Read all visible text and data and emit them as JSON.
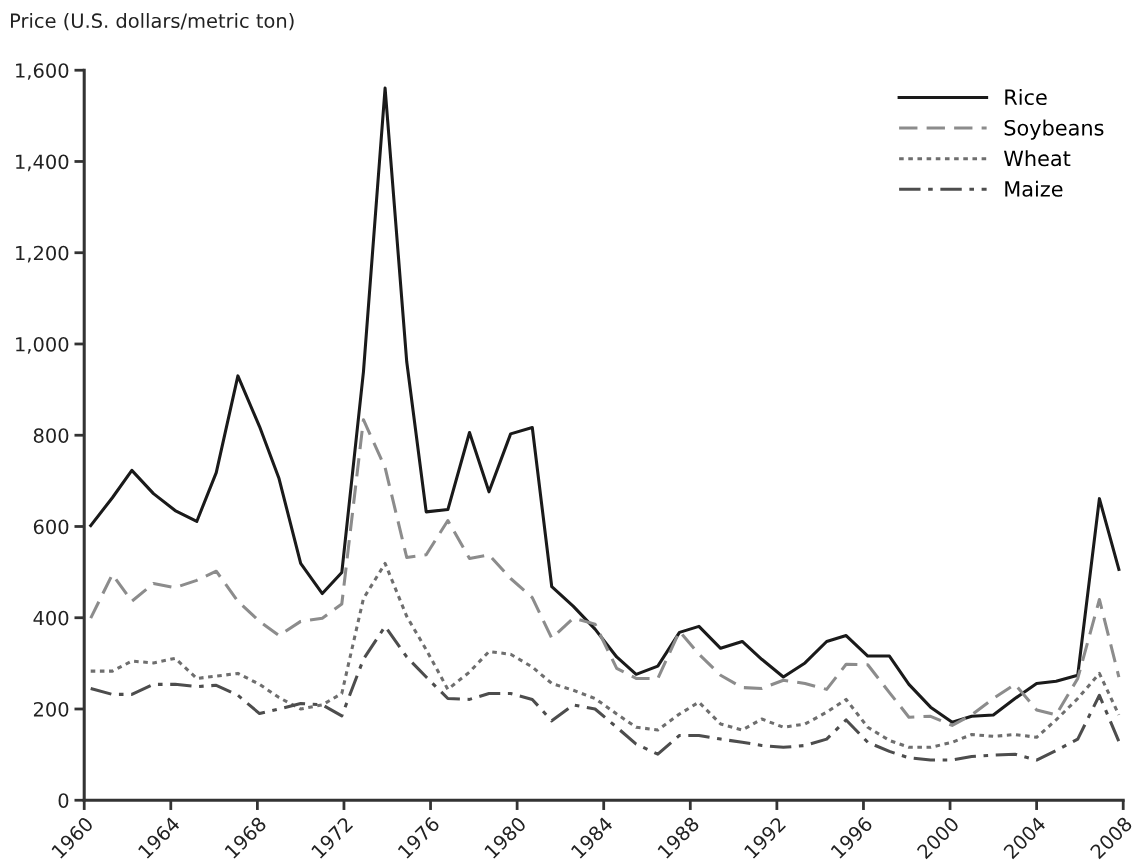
{
  "chart_data": {
    "type": "line",
    "ylabel": "Price (U.S. dollars/metric ton)",
    "x": [
      1960.3,
      1961.3,
      1962.2,
      1963.2,
      1964.2,
      1965.2,
      1966.1,
      1967.1,
      1968.1,
      1969.0,
      1970.0,
      1971.0,
      1971.9,
      1972.9,
      1973.9,
      1974.9,
      1975.8,
      1976.8,
      1977.8,
      1978.7,
      1979.7,
      1980.7,
      1981.6,
      1982.6,
      1983.6,
      1984.6,
      1985.5,
      1986.5,
      1987.5,
      1988.4,
      1989.4,
      1990.4,
      1991.3,
      1992.3,
      1993.3,
      1994.3,
      1995.2,
      1996.2,
      1997.2,
      1998.1,
      1999.1,
      2000.1,
      2001.0,
      2002.0,
      2003.0,
      2004.0,
      2004.9,
      2005.9,
      2006.9,
      2007.8
    ],
    "series": [
      {
        "name": "Rice",
        "color": "#1a1a1a",
        "line_style": "solid",
        "values": [
          602,
          663,
          723,
          672,
          635,
          611,
          718,
          930,
          819,
          705,
          519,
          453,
          499,
          939,
          1561,
          961,
          632,
          637,
          806,
          676,
          803,
          817,
          468,
          425,
          375,
          314,
          276,
          294,
          368,
          381,
          333,
          348,
          309,
          270,
          301,
          348,
          361,
          316,
          316,
          254,
          204,
          171,
          184,
          187,
          223,
          256,
          261,
          274,
          661,
          506
        ]
      },
      {
        "name": "Soybeans",
        "color": "#8c8c8c",
        "line_style": "dashed",
        "values": [
          399,
          495,
          436,
          475,
          466,
          482,
          502,
          436,
          392,
          361,
          392,
          399,
          430,
          834,
          729,
          532,
          538,
          613,
          530,
          538,
          486,
          444,
          355,
          399,
          386,
          289,
          267,
          267,
          370,
          320,
          274,
          247,
          245,
          263,
          256,
          243,
          298,
          297,
          236,
          182,
          184,
          164,
          187,
          223,
          254,
          198,
          187,
          267,
          440,
          270
        ]
      },
      {
        "name": "Wheat",
        "color": "#6e6e6e",
        "line_style": "dotted",
        "values": [
          283,
          283,
          305,
          301,
          311,
          267,
          272,
          278,
          254,
          225,
          200,
          209,
          234,
          442,
          519,
          403,
          330,
          243,
          281,
          326,
          320,
          292,
          256,
          241,
          223,
          189,
          160,
          154,
          189,
          215,
          167,
          154,
          178,
          160,
          167,
          193,
          221,
          160,
          131,
          116,
          116,
          127,
          144,
          140,
          144,
          138,
          176,
          223,
          278,
          187
        ]
      },
      {
        "name": "Maize",
        "color": "#4d4d4d",
        "line_style": "dashdot",
        "values": [
          245,
          232,
          232,
          254,
          254,
          249,
          252,
          230,
          190,
          200,
          212,
          209,
          185,
          309,
          381,
          314,
          270,
          223,
          221,
          234,
          234,
          221,
          174,
          209,
          200,
          160,
          123,
          101,
          142,
          142,
          134,
          127,
          120,
          116,
          120,
          134,
          176,
          127,
          107,
          93,
          88,
          88,
          96,
          99,
          101,
          88,
          109,
          134,
          230,
          129
        ]
      }
    ],
    "xlim": [
      1960,
      2008
    ],
    "xticks": [
      1960,
      1964,
      1968,
      1972,
      1976,
      1980,
      1984,
      1988,
      1992,
      1996,
      2000,
      2004,
      2008
    ],
    "ylim": [
      0,
      1600
    ],
    "yticks": [
      {
        "value": 0,
        "label": "0"
      },
      {
        "value": 200,
        "label": "200"
      },
      {
        "value": 400,
        "label": "400"
      },
      {
        "value": 600,
        "label": "600"
      },
      {
        "value": 800,
        "label": "800"
      },
      {
        "value": 1000,
        "label": "1,000"
      },
      {
        "value": 1200,
        "label": "1,200"
      },
      {
        "value": 1400,
        "label": "1,400"
      },
      {
        "value": 1600,
        "label": "1,600"
      }
    ],
    "grid": false,
    "legend": "top right"
  }
}
